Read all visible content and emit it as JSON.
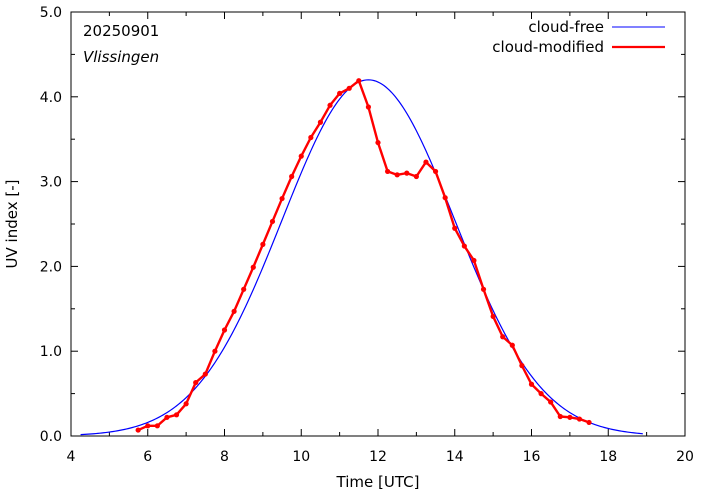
{
  "chart_data": {
    "type": "line",
    "annotations": {
      "date": "20250901",
      "station": "Vlissingen"
    },
    "xlabel": "Time  [UTC]",
    "ylabel": "UV index  [-]",
    "xlim": [
      4,
      20
    ],
    "ylim": [
      0,
      5
    ],
    "xticks": [
      4,
      6,
      8,
      10,
      12,
      14,
      16,
      18,
      20
    ],
    "xtick_labels": [
      "4",
      "6",
      "8",
      "10",
      "12",
      "14",
      "16",
      "18",
      "20"
    ],
    "yticks": [
      0,
      1,
      2,
      3,
      4,
      5
    ],
    "ytick_labels": [
      "0.0",
      "1.0",
      "2.0",
      "3.0",
      "4.0",
      "5.0"
    ],
    "legend_position": "top-right",
    "grid": false,
    "series": [
      {
        "name": "cloud-free",
        "color": "#0000ff",
        "style": "line",
        "gaussian": {
          "peak": 4.2,
          "center": 11.75,
          "sigma": 2.25
        },
        "x_range": [
          4.25,
          18.9
        ]
      },
      {
        "name": "cloud-modified",
        "color": "#ff0000",
        "style": "line-markers",
        "x": [
          5.75,
          6.0,
          6.25,
          6.5,
          6.75,
          7.0,
          7.25,
          7.5,
          7.75,
          8.0,
          8.25,
          8.5,
          8.75,
          9.0,
          9.25,
          9.5,
          9.75,
          10.0,
          10.25,
          10.5,
          10.75,
          11.0,
          11.25,
          11.5,
          11.75,
          12.0,
          12.25,
          12.5,
          12.75,
          13.0,
          13.25,
          13.5,
          13.75,
          14.0,
          14.25,
          14.5,
          14.75,
          15.0,
          15.25,
          15.5,
          15.75,
          16.0,
          16.25,
          16.5,
          16.75,
          17.0,
          17.25,
          17.5
        ],
        "y": [
          0.07,
          0.12,
          0.12,
          0.22,
          0.25,
          0.38,
          0.63,
          0.73,
          1.0,
          1.25,
          1.47,
          1.73,
          1.99,
          2.26,
          2.53,
          2.8,
          3.06,
          3.3,
          3.52,
          3.7,
          3.9,
          4.04,
          4.1,
          4.19,
          3.88,
          3.46,
          3.12,
          3.08,
          3.1,
          3.06,
          3.23,
          3.12,
          2.81,
          2.45,
          2.24,
          2.07,
          1.73,
          1.41,
          1.17,
          1.07,
          0.83,
          0.61,
          0.5,
          0.4,
          0.23,
          0.22,
          0.2,
          0.16
        ]
      }
    ]
  }
}
